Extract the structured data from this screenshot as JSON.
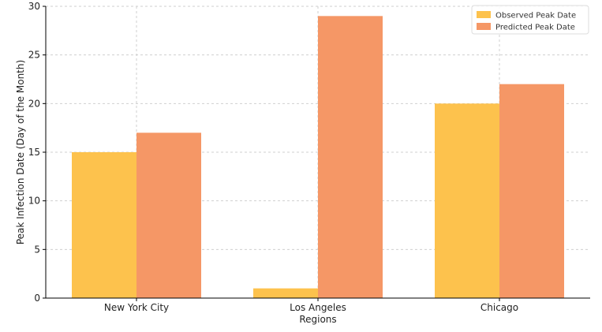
{
  "chart_data": {
    "type": "bar",
    "categories": [
      "New York City",
      "Los Angeles",
      "Chicago"
    ],
    "series": [
      {
        "name": "Observed Peak Date",
        "values": [
          15,
          1,
          20
        ],
        "color": "#FDC24D"
      },
      {
        "name": "Predicted Peak Date",
        "values": [
          17,
          29,
          22
        ],
        "color": "#F59766"
      }
    ],
    "title": "",
    "xlabel": "Regions",
    "ylabel": "Peak Infection Date (Day of the Month)",
    "ylim": [
      0,
      30
    ],
    "yticks": [
      0,
      5,
      10,
      15,
      20,
      25,
      30
    ],
    "grid": true,
    "legend_position": "top-right"
  }
}
